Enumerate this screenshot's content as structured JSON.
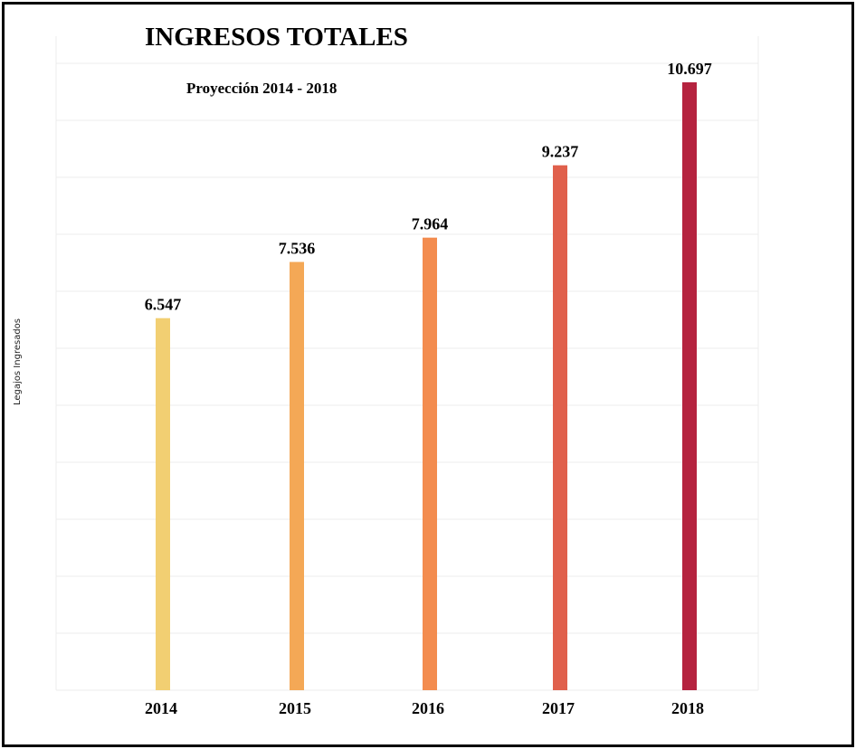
{
  "chart_data": {
    "type": "bar",
    "title": "INGRESOS TOTALES",
    "subtitle": "Proyección 2014 - 2018",
    "xlabel": "",
    "ylabel": "Legajos Ingresados",
    "categories": [
      "2014",
      "2015",
      "2016",
      "2017",
      "2018"
    ],
    "values": [
      6547,
      7536,
      7964,
      9237,
      10697
    ],
    "data_labels": [
      "6.547",
      "7.536",
      "7.964",
      "9.237",
      "10.697"
    ],
    "colors": [
      "#f2cf72",
      "#f4a856",
      "#f38c4f",
      "#e0604c",
      "#b5233f"
    ],
    "ylim": [
      0,
      11000
    ],
    "grid": true,
    "legend": "none"
  }
}
